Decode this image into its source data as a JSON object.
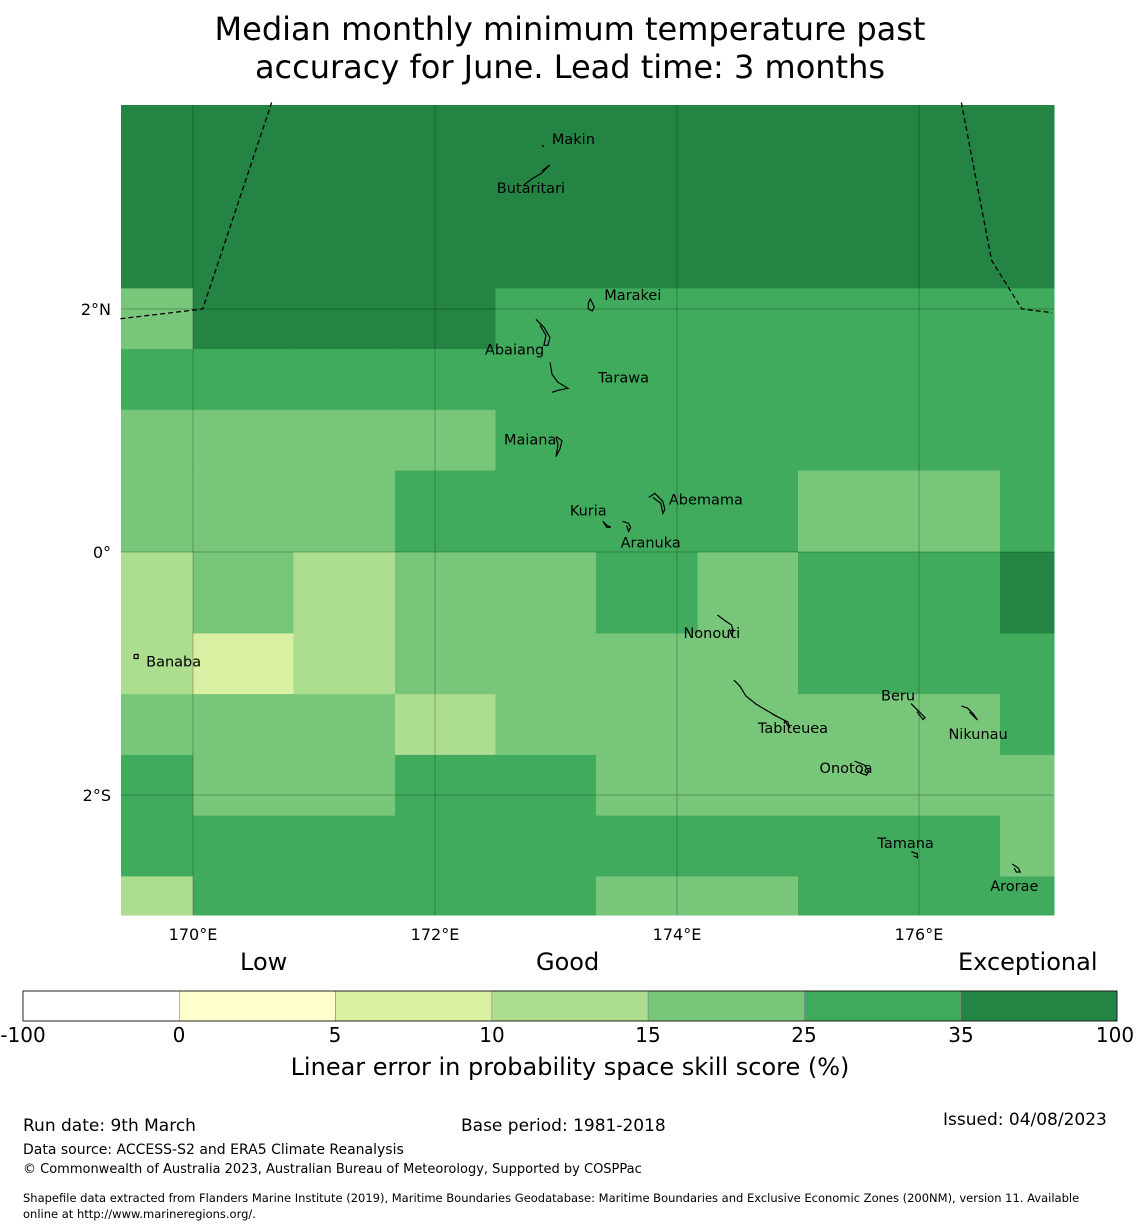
{
  "title": {
    "line1": "Median monthly minimum temperature past",
    "line2": "accuracy for June. Lead time: 3 months"
  },
  "colors": {
    "scale": [
      "#ffffff",
      "#ffffcc",
      "#d9f0a3",
      "#addd8e",
      "#78c679",
      "#41ab5d",
      "#238443"
    ],
    "land_outline": "#000000",
    "boundary": "#000000",
    "grid": "#000000"
  },
  "chart_data": {
    "type": "heatmap",
    "projection": "lon-lat",
    "extent": {
      "lon": [
        169.4,
        177.1
      ],
      "lat": [
        -3.0,
        3.7
      ]
    },
    "x_ticks": [
      {
        "value": 170,
        "label": "170°E"
      },
      {
        "value": 172,
        "label": "172°E"
      },
      {
        "value": 174,
        "label": "174°E"
      },
      {
        "value": 176,
        "label": "176°E"
      }
    ],
    "y_ticks": [
      {
        "value": 2,
        "label": "2°N"
      },
      {
        "value": 0,
        "label": "0°"
      },
      {
        "value": -2,
        "label": "2°S"
      }
    ],
    "grid_cell_deg": 0.833,
    "category_values_legend": "0: -100 to 0, 1: 0-5, 2: 5-10, 3: 10-15, 4: 15-25, 5: 25-35, 6: 35-100",
    "rows_north_to_south": [
      [
        6,
        6,
        6,
        6,
        6,
        6,
        6,
        6,
        6,
        6
      ],
      [
        4,
        6,
        6,
        6,
        5,
        5,
        5,
        5,
        5,
        5
      ],
      [
        5,
        5,
        5,
        5,
        5,
        5,
        5,
        5,
        5,
        5
      ],
      [
        4,
        4,
        4,
        4,
        5,
        5,
        5,
        5,
        5,
        5
      ],
      [
        4,
        4,
        4,
        5,
        5,
        5,
        5,
        4,
        4,
        5
      ],
      [
        3,
        4,
        3,
        4,
        4,
        5,
        4,
        5,
        5,
        6
      ],
      [
        3,
        2,
        3,
        4,
        4,
        4,
        4,
        5,
        5,
        5
      ],
      [
        4,
        4,
        4,
        3,
        4,
        4,
        4,
        4,
        4,
        5
      ],
      [
        5,
        4,
        4,
        5,
        5,
        4,
        4,
        4,
        4,
        4
      ],
      [
        5,
        5,
        5,
        5,
        5,
        5,
        5,
        5,
        5,
        4
      ],
      [
        3,
        5,
        5,
        5,
        5,
        4,
        4,
        5,
        5,
        5
      ]
    ],
    "col_lon_edges": [
      169.4,
      170.0,
      170.83,
      171.67,
      172.5,
      173.33,
      174.17,
      175.0,
      175.83,
      176.67,
      177.1
    ],
    "row_lat_edges": [
      3.7,
      2.17,
      1.67,
      1.17,
      0.67,
      0.0,
      -0.67,
      -1.17,
      -1.67,
      -2.17,
      -2.67,
      -3.0
    ],
    "islands": [
      {
        "name": "Makin",
        "lon": 172.9,
        "lat": 3.35
      },
      {
        "name": "Butaritari",
        "lon": 172.8,
        "lat": 3.07
      },
      {
        "name": "Marakei",
        "lon": 173.3,
        "lat": 2.0
      },
      {
        "name": "Abaiang",
        "lon": 172.95,
        "lat": 1.8
      },
      {
        "name": "Tarawa",
        "lon": 173.05,
        "lat": 1.38
      },
      {
        "name": "Maiana",
        "lon": 173.0,
        "lat": 0.9
      },
      {
        "name": "Abemama",
        "lon": 173.85,
        "lat": 0.4
      },
      {
        "name": "Kuria",
        "lon": 173.42,
        "lat": 0.22
      },
      {
        "name": "Aranuka",
        "lon": 173.6,
        "lat": 0.17
      },
      {
        "name": "Nonouti",
        "lon": 174.45,
        "lat": -0.65
      },
      {
        "name": "Banaba",
        "lon": 169.53,
        "lat": -0.86
      },
      {
        "name": "Tabiteuea",
        "lon": 174.9,
        "lat": -1.35
      },
      {
        "name": "Beru",
        "lon": 176.0,
        "lat": -1.33
      },
      {
        "name": "Nikunau",
        "lon": 176.45,
        "lat": -1.35
      },
      {
        "name": "Onotoa",
        "lon": 175.55,
        "lat": -1.82
      },
      {
        "name": "Tamana",
        "lon": 175.97,
        "lat": -2.5
      },
      {
        "name": "Arorae",
        "lon": 176.82,
        "lat": -2.65
      }
    ],
    "eez_boundary_west": [
      [
        169.4,
        1.92
      ],
      [
        170.08,
        2.0
      ],
      [
        170.65,
        3.7
      ]
    ],
    "eez_boundary_east": [
      [
        176.35,
        3.7
      ],
      [
        176.6,
        2.4
      ],
      [
        176.85,
        2.0
      ],
      [
        177.1,
        1.97
      ]
    ]
  },
  "colorbar": {
    "categories": [
      "Low",
      "Good",
      "Exceptional"
    ],
    "ticks": [
      "-100",
      "0",
      "5",
      "10",
      "15",
      "25",
      "35",
      "100"
    ],
    "label": "Linear error in probability space skill score (%)"
  },
  "footer": {
    "run_date": "Run date: 9th March",
    "base_period": "Base period: 1981-2018",
    "issued": "Issued: 04/08/2023",
    "data_source": "Data source: ACCESS-S2 and ERA5 Climate Reanalysis",
    "copyright": "© Commonwealth of Australia 2023, Australian Bureau of Meteorology, Supported by COSPPac",
    "shapefile_line1": "Shapefile data extracted from Flanders Marine Institute (2019), Maritime Boundaries Geodatabase: Maritime Boundaries and Exclusive Economic Zones (200NM), version 11. Available",
    "shapefile_line2": "online at http://www.marineregions.org/."
  }
}
